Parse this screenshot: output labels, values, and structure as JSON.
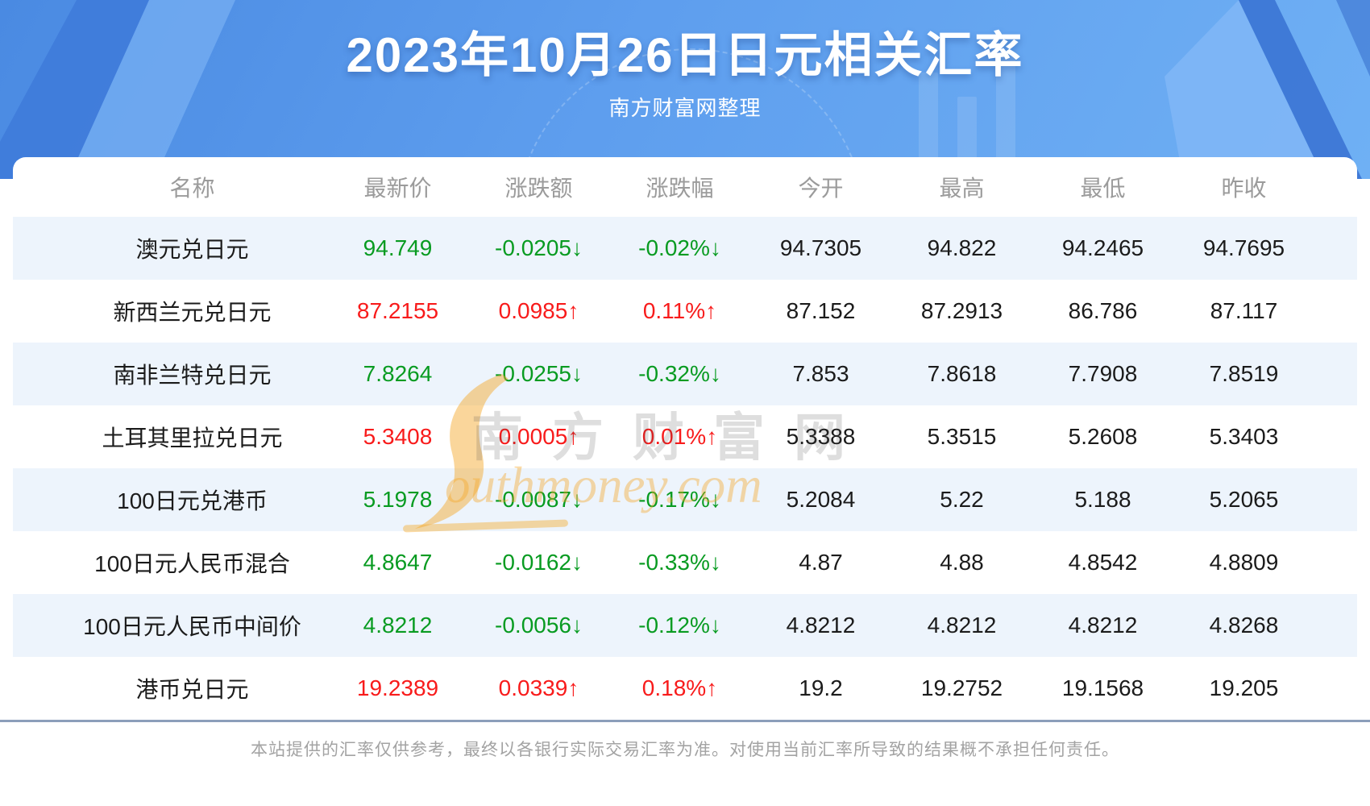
{
  "page": {
    "title": "2023年10月26日日元相关汇率",
    "subtitle": "南方财富网整理",
    "disclaimer": "本站提供的汇率仅供参考，最终以各银行实际交易汇率为准。对使用当前汇率所导致的结果概不承担任何责任。"
  },
  "watermark": {
    "cjk": "南方财富网",
    "latin": "outhmoney.com"
  },
  "colors": {
    "up": "#f81b1b",
    "down": "#089b21",
    "stripe": "#edf4fc",
    "divider": "#8c9eba",
    "watermark_orange": "#f5a623"
  },
  "chart_data": {
    "type": "table",
    "title": "2023年10月26日日元相关汇率",
    "subtitle": "南方财富网整理",
    "columns": [
      "名称",
      "最新价",
      "涨跌额",
      "涨跌幅",
      "今开",
      "最高",
      "最低",
      "昨收"
    ],
    "rows": [
      {
        "direction": "down",
        "cells": [
          "澳元兑日元",
          "94.749",
          "-0.0205↓",
          "-0.02%↓",
          "94.7305",
          "94.822",
          "94.2465",
          "94.7695"
        ]
      },
      {
        "direction": "up",
        "cells": [
          "新西兰元兑日元",
          "87.2155",
          "0.0985↑",
          "0.11%↑",
          "87.152",
          "87.2913",
          "86.786",
          "87.117"
        ]
      },
      {
        "direction": "down",
        "cells": [
          "南非兰特兑日元",
          "7.8264",
          "-0.0255↓",
          "-0.32%↓",
          "7.853",
          "7.8618",
          "7.7908",
          "7.8519"
        ]
      },
      {
        "direction": "up",
        "cells": [
          "土耳其里拉兑日元",
          "5.3408",
          "0.0005↑",
          "0.01%↑",
          "5.3388",
          "5.3515",
          "5.2608",
          "5.3403"
        ]
      },
      {
        "direction": "down",
        "cells": [
          "100日元兑港币",
          "5.1978",
          "-0.0087↓",
          "-0.17%↓",
          "5.2084",
          "5.22",
          "5.188",
          "5.2065"
        ]
      },
      {
        "direction": "down",
        "cells": [
          "100日元人民币混合",
          "4.8647",
          "-0.0162↓",
          "-0.33%↓",
          "4.87",
          "4.88",
          "4.8542",
          "4.8809"
        ]
      },
      {
        "direction": "down",
        "cells": [
          "100日元人民币中间价",
          "4.8212",
          "-0.0056↓",
          "-0.12%↓",
          "4.8212",
          "4.8212",
          "4.8212",
          "4.8268"
        ]
      },
      {
        "direction": "up",
        "cells": [
          "港币兑日元",
          "19.2389",
          "0.0339↑",
          "0.18%↑",
          "19.2",
          "19.2752",
          "19.1568",
          "19.205"
        ]
      }
    ]
  }
}
